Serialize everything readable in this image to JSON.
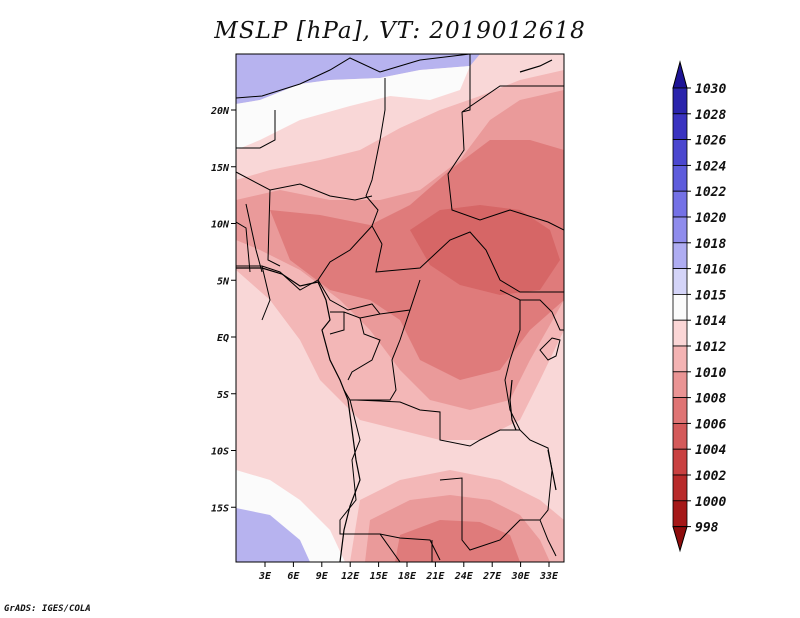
{
  "title": "MSLP [hPa], VT: 2019012618",
  "credit": "GrADS: IGES/COLA",
  "lat_ticks": [
    "20N",
    "15N",
    "10N",
    "5N",
    "EQ",
    "5S",
    "10S",
    "15S"
  ],
  "lon_ticks": [
    "3E",
    "6E",
    "9E",
    "12E",
    "15E",
    "18E",
    "21E",
    "24E",
    "27E",
    "30E",
    "33E"
  ],
  "colorbar": {
    "levels": [
      "1030",
      "1028",
      "1026",
      "1024",
      "1022",
      "1020",
      "1018",
      "1016",
      "1015",
      "1014",
      "1012",
      "1010",
      "1008",
      "1006",
      "1004",
      "1002",
      "1000",
      "998"
    ],
    "colors": [
      "#1e1496",
      "#2a24ac",
      "#3a33c0",
      "#4b47cf",
      "#5e5cdc",
      "#7471e6",
      "#8f8cec",
      "#afadf2",
      "#d4d4f8",
      "#fbfbfb",
      "#fbd6d6",
      "#f4b3b3",
      "#ea9494",
      "#df7474",
      "#d45a5a",
      "#c94141",
      "#b82a2a",
      "#a51818",
      "#8e0c0c"
    ]
  },
  "colors": {
    "high": "#b7b3ef",
    "neutral": "#fbfbfb",
    "pale": "#f9d7d7",
    "light": "#f3b7b7",
    "mid": "#ea9a9a",
    "deep": "#df7b7b",
    "deepest": "#d66666"
  }
}
